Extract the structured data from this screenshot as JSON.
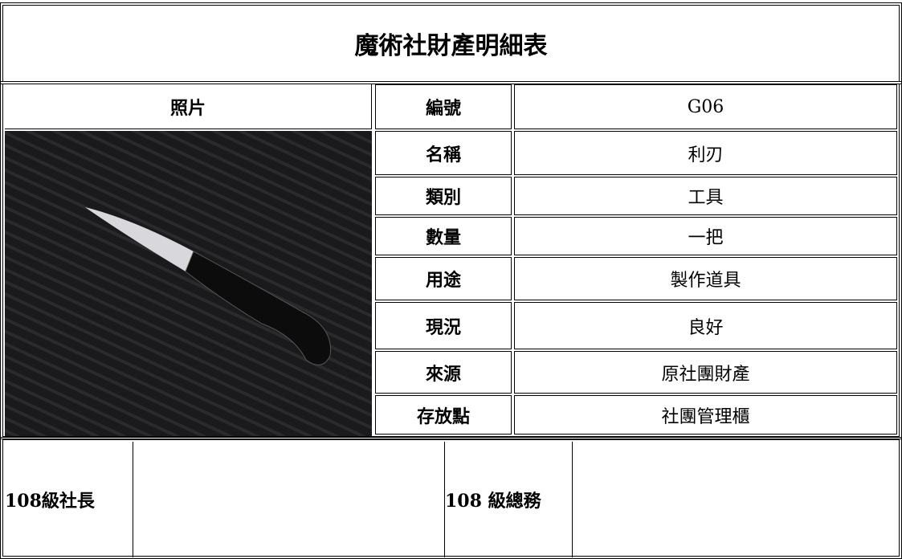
{
  "title": "魔術社財產明細表",
  "photo_label": "照片",
  "fields": [
    {
      "label": "編號",
      "value": "G06"
    },
    {
      "label": "名稱",
      "value": "利刃"
    },
    {
      "label": "類別",
      "value": "工具"
    },
    {
      "label": "數量",
      "value": "一把"
    },
    {
      "label": "用途",
      "value": "製作道具"
    },
    {
      "label": "現況",
      "value": "良好"
    },
    {
      "label": "來源",
      "value": "原社團財產"
    },
    {
      "label": "存放點",
      "value": "社團管理櫃"
    }
  ],
  "signatures": [
    "108級社長",
    "108 級總務"
  ]
}
